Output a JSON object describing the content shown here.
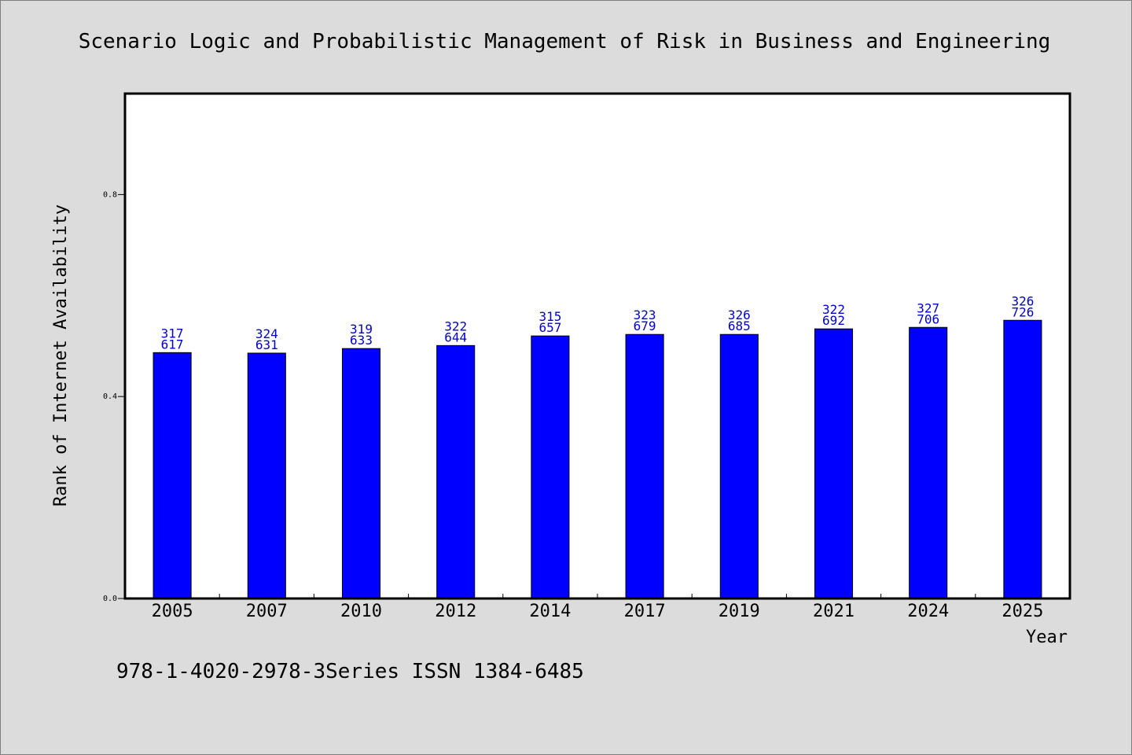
{
  "colors": {
    "background": "#dcdcdc",
    "plot_background": "#ffffff",
    "bar_fill": "#0000ff",
    "bar_stroke": "#000000",
    "data_label": "#0000cc"
  },
  "footer": {
    "text": "978-1-4020-2978-3Series ISSN 1384-6485"
  },
  "chart_data": {
    "type": "bar",
    "title": "Scenario Logic and Probabilistic Management of Risk in Business and Engineering",
    "xlabel": "Year",
    "ylabel": "Rank of Internet Availability",
    "ylim": [
      0,
      1
    ],
    "yticks": [
      0.0,
      0.4,
      0.8
    ],
    "ytick_labels": [
      "0.0",
      "0.4",
      "0.8"
    ],
    "grid": false,
    "categories": [
      "2005",
      "2007",
      "2010",
      "2012",
      "2014",
      "2017",
      "2019",
      "2021",
      "2024",
      "2025"
    ],
    "values": [
      0.487,
      0.486,
      0.495,
      0.501,
      0.52,
      0.523,
      0.523,
      0.534,
      0.537,
      0.551
    ],
    "data_labels": [
      [
        "317",
        "617"
      ],
      [
        "324",
        "631"
      ],
      [
        "319",
        "633"
      ],
      [
        "322",
        "644"
      ],
      [
        "315",
        "657"
      ],
      [
        "323",
        "679"
      ],
      [
        "326",
        "685"
      ],
      [
        "322",
        "692"
      ],
      [
        "327",
        "706"
      ],
      [
        "326",
        "726"
      ]
    ]
  }
}
